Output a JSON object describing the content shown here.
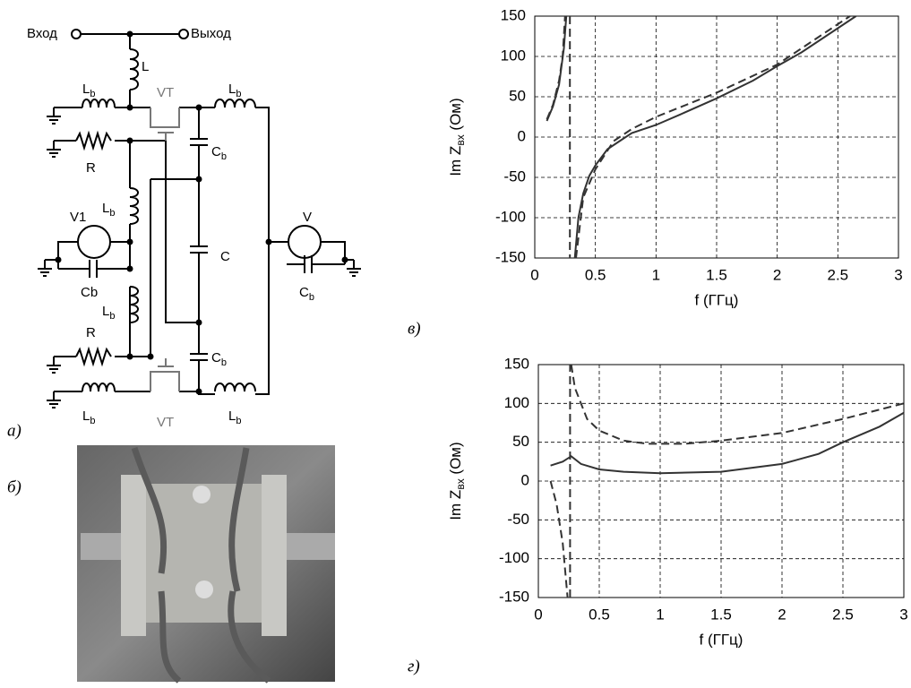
{
  "panel_labels": [
    "а)",
    "б)",
    "в)",
    "г)"
  ],
  "circuit": {
    "input": "Вход",
    "output": "Выход",
    "labels": [
      {
        "main": "L"
      },
      {
        "main": "L",
        "sub": "b"
      },
      {
        "main": "VT"
      },
      {
        "main": "L",
        "sub": "b"
      },
      {
        "main": "R"
      },
      {
        "main": "C",
        "sub": "b"
      },
      {
        "main": "V1"
      },
      {
        "main": "L",
        "sub": "b"
      },
      {
        "main": "C"
      },
      {
        "main": "V"
      },
      {
        "main": "Cb"
      },
      {
        "main": "C",
        "sub": "b"
      },
      {
        "main": "L",
        "sub": "b"
      },
      {
        "main": "R"
      },
      {
        "main": "C",
        "sub": "b"
      },
      {
        "main": "L",
        "sub": "b"
      },
      {
        "main": "VT"
      },
      {
        "main": "L",
        "sub": "b"
      }
    ]
  },
  "chart_data": [
    {
      "type": "line",
      "xlabel": "f (ГГц)",
      "ylabel": {
        "main": "Im Z",
        "sub": "вх",
        "unit": " (Ом)"
      },
      "xlim": [
        0,
        3
      ],
      "ylim": [
        -150,
        150
      ],
      "xticks": [
        0,
        0.5,
        1,
        1.5,
        2,
        2.5,
        3
      ],
      "yticks": [
        -150,
        -100,
        -50,
        0,
        50,
        100,
        150
      ],
      "grid": true,
      "series": [
        {
          "color": "#333333",
          "style": "solid",
          "x": [
            0.1,
            0.15,
            0.2,
            0.24,
            0.26,
            0.3,
            0.33,
            0.36,
            0.4,
            0.45,
            0.5,
            0.6,
            0.7,
            0.8,
            1,
            1.2,
            1.5,
            1.8,
            2,
            2.2,
            2.5,
            2.65
          ],
          "values": [
            20,
            38,
            65,
            110,
            150,
            null,
            -150,
            -100,
            -70,
            -48,
            -35,
            -15,
            -5,
            5,
            15,
            28,
            48,
            70,
            88,
            105,
            135,
            150
          ]
        },
        {
          "color": "#333333",
          "style": "dashed",
          "x": [
            0.1,
            0.15,
            0.2,
            0.23,
            0.25,
            0.27,
            0.29,
            0.29,
            0.31,
            0.34,
            0.4,
            0.5,
            0.65,
            0.8,
            1,
            1.5,
            2,
            2.5,
            2.6
          ],
          "values": [
            22,
            40,
            70,
            100,
            150,
            null,
            150,
            -150,
            null,
            -150,
            -75,
            -40,
            -5,
            10,
            25,
            55,
            90,
            140,
            150
          ]
        }
      ]
    },
    {
      "type": "line",
      "xlabel": "f (ГГц)",
      "ylabel": {
        "main": "Im Z",
        "sub": "вх",
        "unit": " (Ом)"
      },
      "xlim": [
        0,
        3
      ],
      "ylim": [
        -150,
        150
      ],
      "xticks": [
        0,
        0.5,
        1,
        1.5,
        2,
        2.5,
        3
      ],
      "yticks": [
        -150,
        -100,
        -50,
        0,
        50,
        100,
        150
      ],
      "grid": true,
      "series": [
        {
          "color": "#333333",
          "style": "solid",
          "x": [
            0.1,
            0.2,
            0.27,
            0.35,
            0.5,
            0.7,
            1,
            1.5,
            2,
            2.3,
            2.5,
            2.8,
            3
          ],
          "values": [
            20,
            25,
            32,
            22,
            15,
            12,
            10,
            12,
            22,
            35,
            50,
            70,
            88
          ]
        },
        {
          "color": "#333333",
          "style": "dashed",
          "x": [
            0.1,
            0.15,
            0.2,
            0.24,
            0.25,
            0.26,
            0.26,
            0.27,
            0.27,
            0.3,
            0.4,
            0.5,
            0.7,
            0.9,
            1.2,
            1.5,
            2,
            2.5,
            3
          ],
          "values": [
            0,
            -30,
            -80,
            -150,
            null,
            -150,
            150,
            null,
            150,
            120,
            80,
            65,
            52,
            48,
            48,
            52,
            62,
            80,
            100
          ]
        }
      ]
    }
  ]
}
